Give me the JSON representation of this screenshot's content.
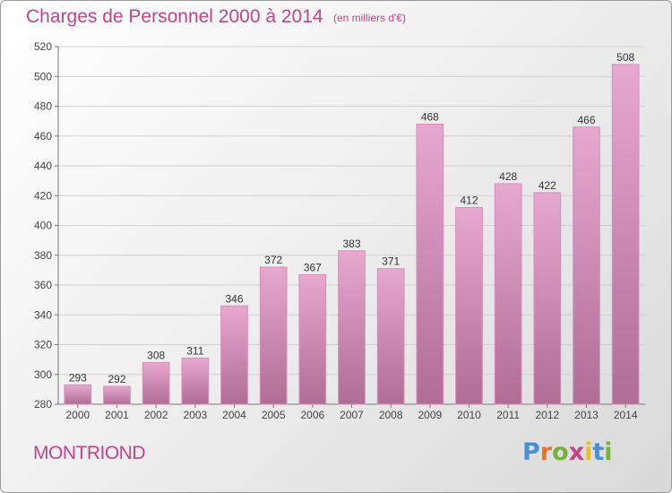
{
  "header": {
    "title": "Charges de Personnel 2000 à 2014",
    "subtitle": "(en milliers d'€)"
  },
  "footer": {
    "commune": "MONTRIOND",
    "logo": {
      "letters": [
        "P",
        "r",
        "o",
        "x",
        "i",
        "t",
        "i"
      ],
      "colors": [
        "#4a8fd6",
        "#e8742a",
        "#7ab03a",
        "#c0458a",
        "#e8c02a",
        "#4a8fd6",
        "#7ab03a"
      ]
    }
  },
  "colors": {
    "accent": "#c0458a",
    "bar_top": "#e7a8d0",
    "bar_bottom": "#b06d96",
    "bar_stroke": "#d98cbc"
  },
  "chart_data": {
    "type": "bar",
    "categories": [
      "2000",
      "2001",
      "2002",
      "2003",
      "2004",
      "2005",
      "2006",
      "2007",
      "2008",
      "2009",
      "2010",
      "2011",
      "2012",
      "2013",
      "2014"
    ],
    "values": [
      293,
      292,
      308,
      311,
      346,
      372,
      367,
      383,
      371,
      468,
      412,
      428,
      422,
      466,
      508
    ],
    "ylim": [
      280,
      520
    ],
    "yticks": [
      280,
      300,
      320,
      340,
      360,
      380,
      400,
      420,
      440,
      460,
      480,
      500,
      520
    ],
    "grid": true,
    "xlabel": "",
    "ylabel": ""
  }
}
